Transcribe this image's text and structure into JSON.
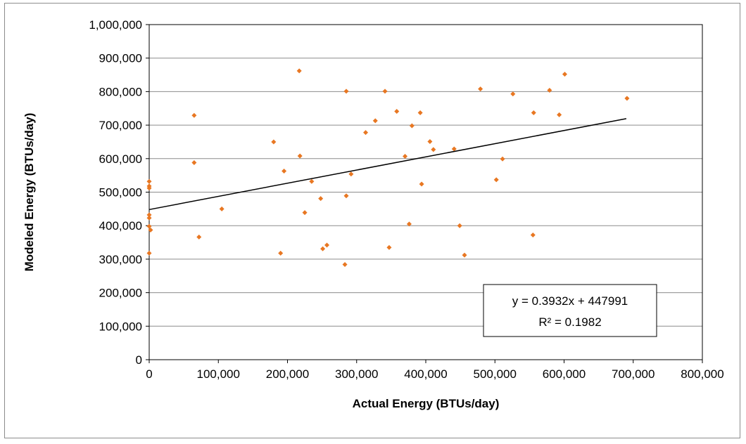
{
  "chart_data": {
    "type": "scatter",
    "xlabel": "Actual Energy (BTUs/day)",
    "ylabel": "Modeled Energy (BTUs/day)",
    "xlim": [
      0,
      800000
    ],
    "ylim": [
      0,
      1000000
    ],
    "x_ticks": [
      "0",
      "100,000",
      "200,000",
      "300,000",
      "400,000",
      "500,000",
      "600,000",
      "700,000",
      "800,000"
    ],
    "y_ticks": [
      "0",
      "100,000",
      "200,000",
      "300,000",
      "400,000",
      "500,000",
      "600,000",
      "700,000",
      "800,000",
      "900,000",
      "1,000,000"
    ],
    "grid": "horizontal",
    "marker_color": "#e87722",
    "trendline": {
      "slope": 0.3932,
      "intercept": 447991,
      "x_range": [
        0,
        690000
      ],
      "color": "#000000"
    },
    "equation_label": "y = 0.3932x + 447991",
    "r2_label": "R² = 0.1982",
    "points": [
      {
        "x": 0,
        "y": 532000
      },
      {
        "x": 0,
        "y": 518000
      },
      {
        "x": 0,
        "y": 512000
      },
      {
        "x": 0,
        "y": 432000
      },
      {
        "x": 0,
        "y": 423000
      },
      {
        "x": 0,
        "y": 398000
      },
      {
        "x": 2000,
        "y": 387000
      },
      {
        "x": 0,
        "y": 318000
      },
      {
        "x": 65000,
        "y": 729000
      },
      {
        "x": 65000,
        "y": 588000
      },
      {
        "x": 72000,
        "y": 366000
      },
      {
        "x": 105000,
        "y": 450000
      },
      {
        "x": 180000,
        "y": 650000
      },
      {
        "x": 190000,
        "y": 318000
      },
      {
        "x": 195000,
        "y": 563000
      },
      {
        "x": 217000,
        "y": 862000
      },
      {
        "x": 218000,
        "y": 608000
      },
      {
        "x": 225000,
        "y": 439000
      },
      {
        "x": 235000,
        "y": 532000
      },
      {
        "x": 248000,
        "y": 481000
      },
      {
        "x": 251000,
        "y": 331000
      },
      {
        "x": 257000,
        "y": 342000
      },
      {
        "x": 283000,
        "y": 284000
      },
      {
        "x": 285000,
        "y": 801000
      },
      {
        "x": 285000,
        "y": 489000
      },
      {
        "x": 292000,
        "y": 554000
      },
      {
        "x": 313000,
        "y": 678000
      },
      {
        "x": 327000,
        "y": 713000
      },
      {
        "x": 341000,
        "y": 801000
      },
      {
        "x": 347000,
        "y": 335000
      },
      {
        "x": 358000,
        "y": 741000
      },
      {
        "x": 370000,
        "y": 607000
      },
      {
        "x": 376000,
        "y": 405000
      },
      {
        "x": 380000,
        "y": 698000
      },
      {
        "x": 392000,
        "y": 737000
      },
      {
        "x": 394000,
        "y": 524000
      },
      {
        "x": 406000,
        "y": 651000
      },
      {
        "x": 411000,
        "y": 627000
      },
      {
        "x": 441000,
        "y": 629000
      },
      {
        "x": 449000,
        "y": 400000
      },
      {
        "x": 456000,
        "y": 312000
      },
      {
        "x": 479000,
        "y": 808000
      },
      {
        "x": 502000,
        "y": 537000
      },
      {
        "x": 511000,
        "y": 599000
      },
      {
        "x": 526000,
        "y": 793000
      },
      {
        "x": 555000,
        "y": 372000
      },
      {
        "x": 556000,
        "y": 737000
      },
      {
        "x": 579000,
        "y": 804000
      },
      {
        "x": 593000,
        "y": 731000
      },
      {
        "x": 601000,
        "y": 852000
      },
      {
        "x": 691000,
        "y": 780000
      }
    ]
  }
}
